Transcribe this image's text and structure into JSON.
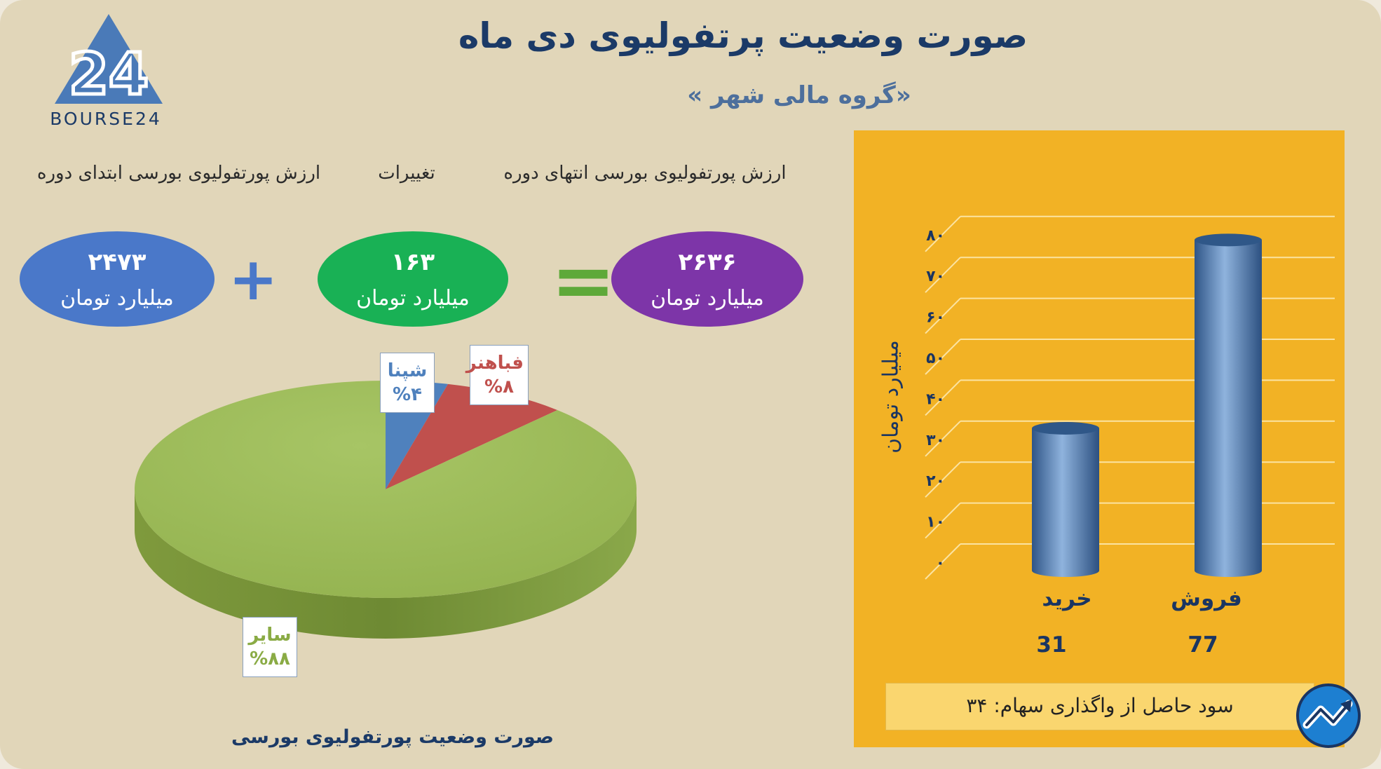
{
  "header": {
    "title": "صورت وضعیت پرتفولیوی دی ماه",
    "subtitle": "«گروه مالی شهر »",
    "logo_text": "BOURSE24",
    "logo_mark": "24"
  },
  "equation": {
    "col_end_label": "ارزش پورتفولیوی بورسی انتهای دوره",
    "col_change_label": "تغییرات",
    "col_start_label": "ارزش پورتفولیوی بورسی ابتدای دوره",
    "end_value": "۲۶۳۶",
    "change_value": "۱۶۳",
    "start_value": "۲۴۷۳",
    "unit": "میلیارد تومان",
    "plus_symbol": "+",
    "equals_symbol": "=",
    "colors": {
      "end": "#7d35a8",
      "change": "#19b155",
      "start": "#4a78c9",
      "plus": "#4a78c9",
      "equals": "#5ea939"
    }
  },
  "pie_caption": "صورت وضعیت پورتفولیوی بورسی",
  "bar_panel": {
    "axis_title": "میلیارد تومان",
    "profit_text": "سود حاصل از واگذاری سهام: ۳۴"
  },
  "chart_data": [
    {
      "type": "pie",
      "title": "",
      "slices": [
        {
          "name": "شپنا",
          "value": 4,
          "label": "%۴",
          "color": "#4f81bd"
        },
        {
          "name": "فباهنر",
          "value": 8,
          "label": "%۸",
          "color": "#c0504d"
        },
        {
          "name": "سایر",
          "value": 88,
          "label": "%۸۸",
          "color": "#9bbb59"
        }
      ]
    },
    {
      "type": "bar",
      "title": "",
      "categories": [
        "خرید",
        "فروش"
      ],
      "values": [
        31,
        77
      ],
      "value_labels": [
        "31",
        "77"
      ],
      "ylabel": "میلیارد تومان",
      "ylim": [
        0,
        80
      ],
      "yticks": [
        "۰",
        "۱۰",
        "۲۰",
        "۳۰",
        "۴۰",
        "۵۰",
        "۶۰",
        "۷۰",
        "۸۰"
      ],
      "grid": true,
      "bar_color": "#4f81bd",
      "background": "#f2b225"
    }
  ]
}
